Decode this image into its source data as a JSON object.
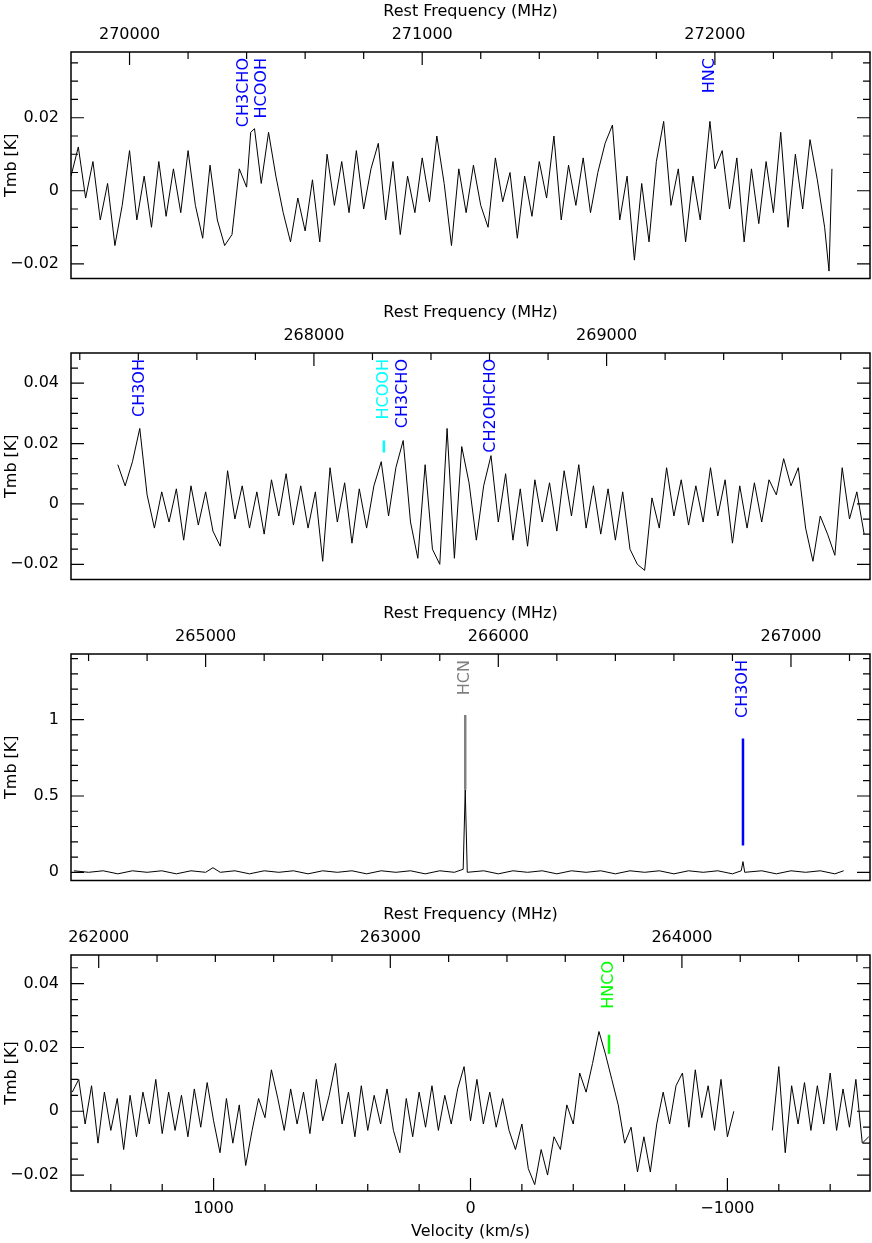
{
  "chart_data": [
    {
      "type": "line",
      "xlabel": "Rest Frequency (MHz)",
      "ylabel": "Tmb [K]",
      "xlim": [
        269800,
        272530
      ],
      "ylim": [
        -0.024,
        0.038
      ],
      "xticks": [
        270000,
        {
          "value": 270200,
          "label": null
        },
        {
          "value": 270400,
          "label": null
        },
        {
          "value": 270600,
          "label": null
        },
        {
          "value": 270800,
          "label": null
        },
        271000,
        {
          "value": 271200,
          "label": null
        },
        {
          "value": 271400,
          "label": null
        },
        {
          "value": 271600,
          "label": null
        },
        {
          "value": 271800,
          "label": null
        },
        272000,
        {
          "value": 272200,
          "label": null
        },
        {
          "value": 272400,
          "label": null
        }
      ],
      "yticks": [
        {
          "value": -0.02,
          "label": "−0.02"
        },
        {
          "value": -0.015,
          "label": null
        },
        {
          "value": -0.01,
          "label": null
        },
        {
          "value": -0.005,
          "label": null
        },
        0,
        {
          "value": 0.005,
          "label": null
        },
        {
          "value": 0.01,
          "label": null
        },
        {
          "value": 0.015,
          "label": null
        },
        0.02,
        {
          "value": 0.025,
          "label": null
        },
        {
          "value": 0.03,
          "label": null
        },
        {
          "value": 0.035,
          "label": null
        }
      ],
      "annotations": [
        {
          "text": "CH3CHO",
          "x": 270414,
          "y": 0.016
        },
        {
          "text": "HCOOH",
          "x": 270427,
          "y": 0.017
        },
        {
          "text": "HNC",
          "x": 271983,
          "y": 0.019
        }
      ],
      "series": [
        {
          "color": "#000000",
          "x": [
            269800,
            269825,
            269850,
            269875,
            269900,
            269925,
            269950,
            269975,
            270000,
            270025,
            270050,
            270075,
            270100,
            270125,
            270150,
            270175,
            270200,
            270225,
            270250,
            270275,
            270300,
            270325,
            270350,
            270375,
            270400,
            270414,
            270427,
            270450,
            270475,
            270500,
            270525,
            270550,
            270575,
            270600,
            270625,
            270650,
            270675,
            270700,
            270725,
            270750,
            270775,
            270800,
            270825,
            270850,
            270875,
            270900,
            270925,
            270950,
            270975,
            271000,
            271025,
            271050,
            271075,
            271100,
            271125,
            271150,
            271175,
            271200,
            271225,
            271250,
            271275,
            271300,
            271325,
            271350,
            271375,
            271400,
            271425,
            271450,
            271475,
            271500,
            271525,
            271550,
            271575,
            271600,
            271625,
            271650,
            271675,
            271700,
            271725,
            271750,
            271775,
            271800,
            271825,
            271850,
            271875,
            271900,
            271925,
            271950,
            271983,
            272000,
            272025,
            272050,
            272075,
            272100,
            272125,
            272150,
            272175,
            272200,
            272225,
            272250,
            272275,
            272300,
            272325,
            272350,
            272375,
            272390,
            272400
          ],
          "values": [
            0.004,
            0.012,
            -0.002,
            0.008,
            -0.008,
            0.002,
            -0.015,
            -0.004,
            0.011,
            -0.008,
            0.004,
            -0.01,
            0.008,
            -0.007,
            0.006,
            -0.006,
            0.011,
            -0.004,
            -0.013,
            0.007,
            -0.008,
            -0.015,
            -0.012,
            0.006,
            0.001,
            0.016,
            0.017,
            0.002,
            0.016,
            0.004,
            -0.006,
            -0.014,
            -0.002,
            -0.011,
            0.003,
            -0.014,
            0.01,
            -0.004,
            0.008,
            -0.006,
            0.011,
            -0.005,
            0.006,
            0.013,
            -0.008,
            0.008,
            -0.012,
            0.004,
            -0.006,
            0.009,
            -0.003,
            0.015,
            0.002,
            -0.015,
            0.006,
            -0.006,
            0.007,
            -0.004,
            -0.01,
            0.009,
            -0.003,
            0.005,
            -0.013,
            0.004,
            -0.007,
            0.008,
            -0.002,
            0.015,
            -0.008,
            0.007,
            -0.004,
            0.009,
            -0.006,
            0.005,
            0.013,
            0.018,
            -0.008,
            0.004,
            -0.019,
            0.002,
            -0.014,
            0.008,
            0.019,
            -0.004,
            0.006,
            -0.014,
            0.004,
            -0.008,
            0.019,
            0.006,
            0.011,
            -0.005,
            0.009,
            -0.014,
            0.006,
            -0.009,
            0.008,
            -0.006,
            0.016,
            -0.01,
            0.01,
            -0.005,
            0.014,
            0.003,
            -0.01,
            -0.022,
            0.006
          ]
        }
      ]
    },
    {
      "type": "line",
      "xlabel": "Rest Frequency (MHz)",
      "ylabel": "Tmb [K]",
      "xlim": [
        267170,
        269900
      ],
      "ylim": [
        -0.025,
        0.05
      ],
      "xticks": [
        {
          "value": 267200,
          "label": null
        },
        {
          "value": 267400,
          "label": null
        },
        {
          "value": 267600,
          "label": null
        },
        {
          "value": 267800,
          "label": null
        },
        268000,
        {
          "value": 268200,
          "label": null
        },
        {
          "value": 268400,
          "label": null
        },
        {
          "value": 268600,
          "label": null
        },
        {
          "value": 268800,
          "label": null
        },
        269000,
        {
          "value": 269200,
          "label": null
        },
        {
          "value": 269400,
          "label": null
        },
        {
          "value": 269600,
          "label": null
        },
        {
          "value": 269800,
          "label": null
        }
      ],
      "yticks": [
        {
          "value": -0.02,
          "label": "−0.02"
        },
        {
          "value": -0.015,
          "label": null
        },
        {
          "value": -0.01,
          "label": null
        },
        {
          "value": -0.005,
          "label": null
        },
        0,
        {
          "value": 0.005,
          "label": null
        },
        {
          "value": 0.01,
          "label": null
        },
        {
          "value": 0.015,
          "label": null
        },
        0.02,
        {
          "value": 0.025,
          "label": null
        },
        {
          "value": 0.03,
          "label": null
        },
        {
          "value": 0.035,
          "label": null
        },
        0.04,
        {
          "value": 0.045,
          "label": null
        }
      ],
      "annotations": [
        {
          "text": "CH3OH",
          "x": 267405,
          "y": 0.025
        },
        {
          "text": "CH3CHO",
          "x": 268305,
          "y": 0.021
        },
        {
          "text": "CH2OHCHO",
          "x": 268605,
          "y": 0.016
        }
      ],
      "series": [
        {
          "color": "#000000",
          "x": [
            267330,
            267355,
            267380,
            267405,
            267430,
            267455,
            267480,
            267505,
            267530,
            267555,
            267580,
            267605,
            267630,
            267655,
            267680,
            267705,
            267730,
            267755,
            267780,
            267805,
            267830,
            267855,
            267880,
            267905,
            267930,
            267955,
            267980,
            268005,
            268030,
            268055,
            268080,
            268105,
            268130,
            268155,
            268180,
            268205,
            268230,
            268255,
            268280,
            268305,
            268330,
            268355,
            268380,
            268405,
            268430,
            268455,
            268480,
            268505,
            268530,
            268555,
            268580,
            268605,
            268630,
            268655,
            268680,
            268705,
            268730,
            268755,
            268780,
            268805,
            268830,
            268855,
            268880,
            268905,
            268930,
            268955,
            268980,
            269005,
            269030,
            269055,
            269080,
            269105,
            269130,
            269155,
            269180,
            269205,
            269230,
            269255,
            269280,
            269305,
            269330,
            269355,
            269380,
            269405,
            269430,
            269455,
            269480,
            269505,
            269530,
            269555,
            269580,
            269605,
            269630,
            269655,
            269680,
            269705,
            269730,
            269755,
            269780,
            269805,
            269830,
            269855,
            269880
          ],
          "values": [
            0.013,
            0.006,
            0.014,
            0.025,
            0.003,
            -0.008,
            0.004,
            -0.006,
            0.005,
            -0.012,
            0.006,
            -0.007,
            0.004,
            -0.009,
            -0.014,
            0.011,
            -0.005,
            0.006,
            -0.008,
            0.004,
            -0.01,
            0.008,
            -0.004,
            0.01,
            -0.007,
            0.006,
            -0.008,
            0.004,
            -0.019,
            0.012,
            -0.006,
            0.007,
            -0.013,
            0.005,
            -0.008,
            0.006,
            0.014,
            -0.004,
            0.012,
            0.021,
            -0.006,
            -0.018,
            0.013,
            -0.015,
            -0.02,
            0.025,
            -0.018,
            0.019,
            0.007,
            -0.012,
            0.006,
            0.016,
            -0.006,
            0.01,
            -0.012,
            0.005,
            -0.014,
            0.008,
            -0.006,
            0.007,
            -0.009,
            0.011,
            -0.004,
            0.013,
            -0.008,
            0.006,
            -0.01,
            0.005,
            -0.012,
            0.004,
            -0.015,
            -0.02,
            -0.022,
            0.002,
            -0.008,
            0.012,
            -0.004,
            0.008,
            -0.007,
            0.006,
            -0.006,
            0.012,
            -0.004,
            0.008,
            -0.013,
            0.006,
            -0.008,
            0.007,
            -0.006,
            0.008,
            0.003,
            0.015,
            0.006,
            0.012,
            -0.008,
            -0.019,
            -0.004,
            -0.01,
            -0.017,
            0.012,
            -0.005,
            0.004,
            -0.01
          ]
        },
        {
          "name": "HCOOH",
          "color": "#00ffff",
          "x": [
            268239,
            268239
          ],
          "values": [
            0.017,
            0.021
          ]
        }
      ]
    },
    {
      "type": "line",
      "xlabel": "Rest Frequency (MHz)",
      "ylabel": "Tmb [K]",
      "xlim": [
        264540,
        267270
      ],
      "ylim": [
        -0.053,
        1.43
      ],
      "xticks": [
        {
          "value": 264600,
          "label": null
        },
        {
          "value": 264800,
          "label": null
        },
        265000,
        {
          "value": 265200,
          "label": null
        },
        {
          "value": 265400,
          "label": null
        },
        {
          "value": 265600,
          "label": null
        },
        {
          "value": 265800,
          "label": null
        },
        266000,
        {
          "value": 266200,
          "label": null
        },
        {
          "value": 266400,
          "label": null
        },
        {
          "value": 266600,
          "label": null
        },
        {
          "value": 266800,
          "label": null
        },
        267000,
        {
          "value": 267200,
          "label": null
        }
      ],
      "yticks": [
        0,
        {
          "value": 0.1,
          "label": null
        },
        {
          "value": 0.2,
          "label": null
        },
        {
          "value": 0.3,
          "label": null
        },
        {
          "value": 0.4,
          "label": null
        },
        0.5,
        {
          "value": 0.6,
          "label": null
        },
        {
          "value": 0.7,
          "label": null
        },
        {
          "value": 0.8,
          "label": null
        },
        {
          "value": 0.9,
          "label": null
        },
        1,
        {
          "value": 1.1,
          "label": null
        },
        {
          "value": 1.2,
          "label": null
        },
        {
          "value": 1.3,
          "label": null
        },
        {
          "value": 1.4,
          "label": null
        }
      ],
      "series": [
        {
          "color": "#000000",
          "x": [
            264550,
            264600,
            264650,
            264700,
            264750,
            264800,
            264850,
            264900,
            264950,
            265000,
            265025,
            265050,
            265100,
            265150,
            265200,
            265250,
            265300,
            265350,
            265400,
            265450,
            265500,
            265550,
            265600,
            265650,
            265700,
            265750,
            265800,
            265850,
            265880,
            265887,
            265894,
            265950,
            266000,
            266050,
            266100,
            266150,
            266200,
            266250,
            266300,
            266350,
            266400,
            266450,
            266500,
            266550,
            266600,
            266650,
            266700,
            266750,
            266800,
            266830,
            266836,
            266842,
            266900,
            266950,
            267000,
            267050,
            267100,
            267150,
            267180
          ],
          "values": [
            0.01,
            0,
            0.01,
            -0.01,
            0.01,
            0,
            0.01,
            -0.01,
            0.01,
            0,
            0.03,
            0,
            0.01,
            -0.01,
            0.01,
            0,
            0.01,
            -0.01,
            0.01,
            0,
            0.01,
            -0.01,
            0.01,
            0,
            0.01,
            -0.01,
            0.01,
            0,
            0.02,
            0.54,
            0,
            0.01,
            -0.01,
            0.01,
            0,
            0.01,
            -0.01,
            0.01,
            0,
            0.01,
            -0.01,
            0.01,
            0,
            0.01,
            -0.01,
            0.01,
            0,
            0.01,
            -0.01,
            0.01,
            0.07,
            0,
            0.01,
            -0.01,
            0.01,
            0,
            0.01,
            -0.01,
            0.01
          ]
        },
        {
          "name": "HCN",
          "color": "#808080",
          "x": [
            265887,
            265887
          ],
          "values": [
            0.54,
            1.03
          ]
        },
        {
          "name": "CH3OH",
          "color": "#0000ff",
          "x": [
            266836,
            266836
          ],
          "values": [
            0.175,
            0.877
          ]
        }
      ]
    },
    {
      "type": "line",
      "xlabel": "Velocity (km/s)",
      "x2label": "Rest Frequency (MHz)",
      "ylabel": "Tmb [K]",
      "xlim": [
        1555,
        -1555
      ],
      "x2lim": [
        261905,
        264645
      ],
      "ylim": [
        -0.025,
        0.049
      ],
      "xticks": [
        {
          "value": 1400,
          "label": null
        },
        {
          "value": 1200,
          "label": null
        },
        1000,
        {
          "value": 800,
          "label": null
        },
        {
          "value": 600,
          "label": null
        },
        {
          "value": 400,
          "label": null
        },
        {
          "value": 200,
          "label": null
        },
        0,
        {
          "value": -200,
          "label": null
        },
        {
          "value": -400,
          "label": null
        },
        {
          "value": -600,
          "label": null
        },
        {
          "value": -800,
          "label": null
        },
        {
          "value": -1000,
          "label": "−1000"
        },
        {
          "value": -1200,
          "label": null
        },
        {
          "value": -1400,
          "label": null
        }
      ],
      "x2ticks": [
        262000,
        {
          "value": 262200,
          "label": null
        },
        {
          "value": 262400,
          "label": null
        },
        {
          "value": 262600,
          "label": null
        },
        {
          "value": 262800,
          "label": null
        },
        263000,
        {
          "value": 263200,
          "label": null
        },
        {
          "value": 263400,
          "label": null
        },
        {
          "value": 263600,
          "label": null
        },
        {
          "value": 263800,
          "label": null
        },
        264000,
        {
          "value": 264200,
          "label": null
        },
        {
          "value": 264400,
          "label": null
        },
        {
          "value": 264600,
          "label": null
        }
      ],
      "yticks": [
        {
          "value": -0.02,
          "label": "−0.02"
        },
        {
          "value": -0.015,
          "label": null
        },
        {
          "value": -0.01,
          "label": null
        },
        {
          "value": -0.005,
          "label": null
        },
        0,
        {
          "value": 0.005,
          "label": null
        },
        {
          "value": 0.01,
          "label": null
        },
        {
          "value": 0.015,
          "label": null
        },
        0.02,
        {
          "value": 0.025,
          "label": null
        },
        {
          "value": 0.03,
          "label": null
        },
        {
          "value": 0.035,
          "label": null
        },
        0.04,
        {
          "value": 0.045,
          "label": null
        }
      ],
      "series": [
        {
          "color": "#000000",
          "x": [
            1550,
            1525,
            1500,
            1475,
            1450,
            1425,
            1400,
            1375,
            1350,
            1325,
            1300,
            1275,
            1250,
            1225,
            1200,
            1175,
            1150,
            1125,
            1100,
            1075,
            1050,
            1025,
            1000,
            975,
            950,
            925,
            900,
            875,
            850,
            825,
            800,
            775,
            750,
            725,
            700,
            675,
            650,
            625,
            600,
            575,
            550,
            525,
            500,
            475,
            450,
            425,
            400,
            375,
            350,
            325,
            300,
            275,
            250,
            225,
            200,
            175,
            150,
            125,
            100,
            75,
            50,
            25,
            0,
            -25,
            -50,
            -75,
            -100,
            -125,
            -150,
            -175,
            -200,
            -225,
            -250,
            -275,
            -300,
            -325,
            -350,
            -375,
            -400,
            -425,
            -450,
            -475,
            -500,
            -525,
            -550,
            -575,
            -600,
            -625,
            -650,
            -675,
            -700,
            -725,
            -750,
            -775,
            -800,
            -825,
            -850,
            -875,
            -900,
            -925,
            -950,
            -975,
            -1000,
            -1025,
            -1100,
            -1175,
            -1200,
            -1225,
            -1250,
            -1275,
            -1300,
            -1325,
            -1350,
            -1375,
            -1400,
            -1425,
            -1450,
            -1475,
            -1500,
            -1525,
            -1550
          ],
          "values": [
            0.006,
            0.01,
            -0.004,
            0.008,
            -0.01,
            0.006,
            -0.006,
            0.004,
            -0.012,
            0.005,
            -0.008,
            0.006,
            -0.004,
            0.01,
            -0.007,
            0.006,
            -0.006,
            0.005,
            -0.008,
            0.007,
            -0.005,
            0.009,
            -0.003,
            -0.013,
            0.004,
            -0.01,
            0.002,
            -0.017,
            -0.006,
            0.004,
            -0.002,
            0.013,
            0.004,
            -0.006,
            0.007,
            -0.004,
            0.006,
            -0.007,
            0.01,
            -0.003,
            0.005,
            0.015,
            -0.004,
            0.006,
            -0.008,
            0.008,
            -0.006,
            0.005,
            -0.004,
            0.007,
            -0.006,
            -0.013,
            0.004,
            -0.008,
            0.006,
            -0.005,
            0.008,
            -0.006,
            0.005,
            -0.004,
            0.007,
            0.014,
            -0.003,
            0.01,
            -0.004,
            0.006,
            -0.005,
            0.004,
            -0.006,
            -0.012,
            -0.004,
            -0.018,
            -0.023,
            -0.012,
            -0.02,
            -0.008,
            -0.012,
            0.002,
            -0.004,
            0.012,
            0.006,
            0.015,
            0.025,
            0.018,
            0.01,
            0.002,
            -0.01,
            -0.005,
            -0.019,
            -0.008,
            -0.019,
            -0.004,
            0.006,
            -0.004,
            0.008,
            0.012,
            -0.005,
            0.013,
            -0.002,
            0.008,
            -0.006,
            0.01,
            -0.008,
            0,
            null,
            -0.006,
            0.014,
            -0.013,
            0.008,
            -0.004,
            0.009,
            -0.006,
            0.008,
            -0.004,
            0.012,
            -0.006,
            0.007,
            -0.005,
            0.01,
            -0.01,
            -0.008
          ]
        },
        {
          "name": "HNCO",
          "color": "#00ff00",
          "x": [
            -539,
            -539
          ],
          "values": [
            0.018,
            0.024
          ]
        }
      ]
    }
  ]
}
